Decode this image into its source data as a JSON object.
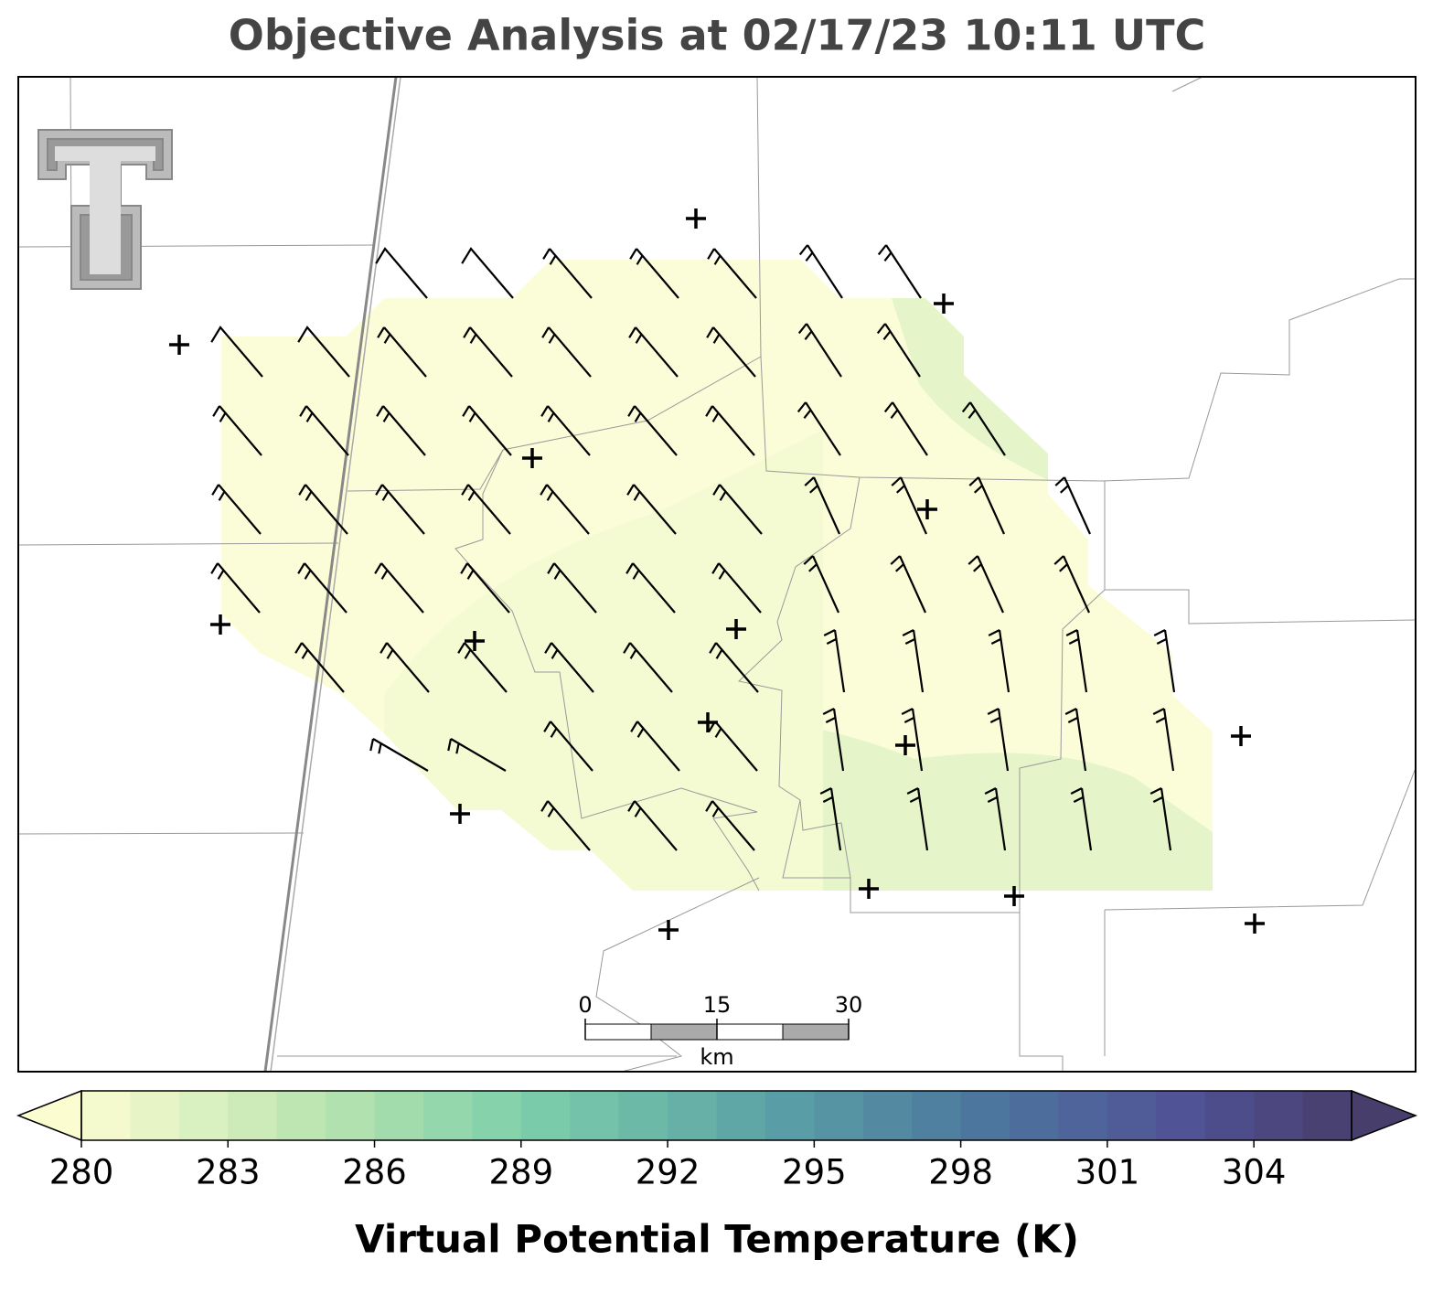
{
  "title": "Objective Analysis at 02/17/23 10:11 UTC",
  "colorbar": {
    "label": "Virtual Potential Temperature (K)",
    "range": [
      280,
      306
    ],
    "ticks": [
      280,
      283,
      286,
      289,
      292,
      295,
      298,
      301,
      304
    ]
  },
  "scale_bar": {
    "ticks": [
      0,
      15,
      30
    ],
    "unit": "km"
  }
}
